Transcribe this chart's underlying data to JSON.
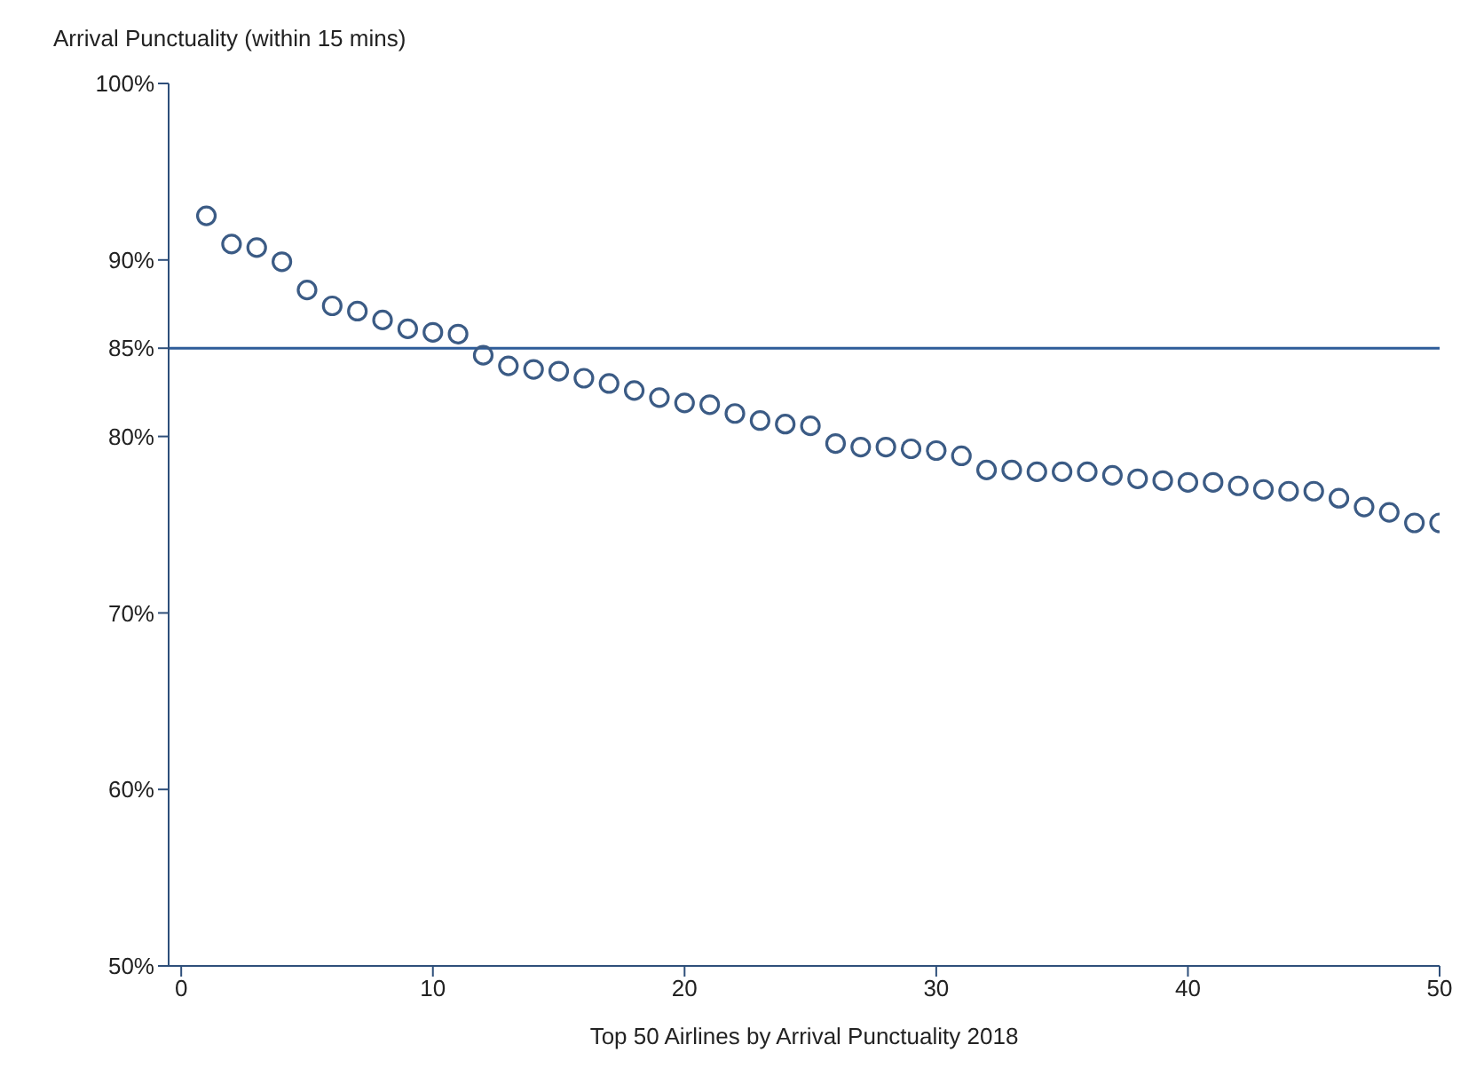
{
  "chart_data": {
    "type": "scatter",
    "ylabel": "Arrival Punctuality (within 15 mins)",
    "xlabel": "Top 50 Airlines by Arrival Punctuality 2018",
    "x": [
      1,
      2,
      3,
      4,
      5,
      6,
      7,
      8,
      9,
      10,
      11,
      12,
      13,
      14,
      15,
      16,
      17,
      18,
      19,
      20,
      21,
      22,
      23,
      24,
      25,
      26,
      27,
      28,
      29,
      30,
      31,
      32,
      33,
      34,
      35,
      36,
      37,
      38,
      39,
      40,
      41,
      42,
      43,
      44,
      45,
      46,
      47,
      48,
      49,
      50
    ],
    "series": [
      {
        "color": "#3b5b85",
        "values": [
          92.5,
          90.9,
          90.7,
          89.9,
          88.3,
          87.4,
          87.1,
          86.6,
          86.1,
          85.9,
          85.8,
          84.6,
          84.0,
          83.8,
          83.7,
          83.3,
          83.0,
          82.6,
          82.2,
          81.9,
          81.8,
          81.3,
          80.9,
          80.7,
          80.6,
          79.6,
          79.4,
          79.4,
          79.3,
          79.2,
          78.9,
          78.1,
          78.1,
          78.0,
          78.0,
          78.0,
          77.8,
          77.6,
          77.5,
          77.4,
          77.4,
          77.2,
          77.0,
          76.9,
          76.9,
          76.5,
          76.0,
          75.7,
          75.1,
          75.1
        ]
      }
    ],
    "marker": "circle",
    "xlim": [
      -0.5,
      50
    ],
    "xticks": [
      0,
      10,
      20,
      30,
      40,
      50
    ],
    "ylim": [
      50,
      100
    ],
    "yticks": [
      {
        "value": 50,
        "label": "50%"
      },
      {
        "value": 60,
        "label": "60%"
      },
      {
        "value": 70,
        "label": "70%"
      },
      {
        "value": 80,
        "label": "80%"
      },
      {
        "value": 85,
        "label": "85%"
      },
      {
        "value": 90,
        "label": "90%"
      },
      {
        "value": 100,
        "label": "100%"
      }
    ],
    "ref_lines": [
      {
        "axis": "y",
        "value": 85,
        "color": "#2e5c99"
      }
    ],
    "grid": false,
    "legend": false
  }
}
